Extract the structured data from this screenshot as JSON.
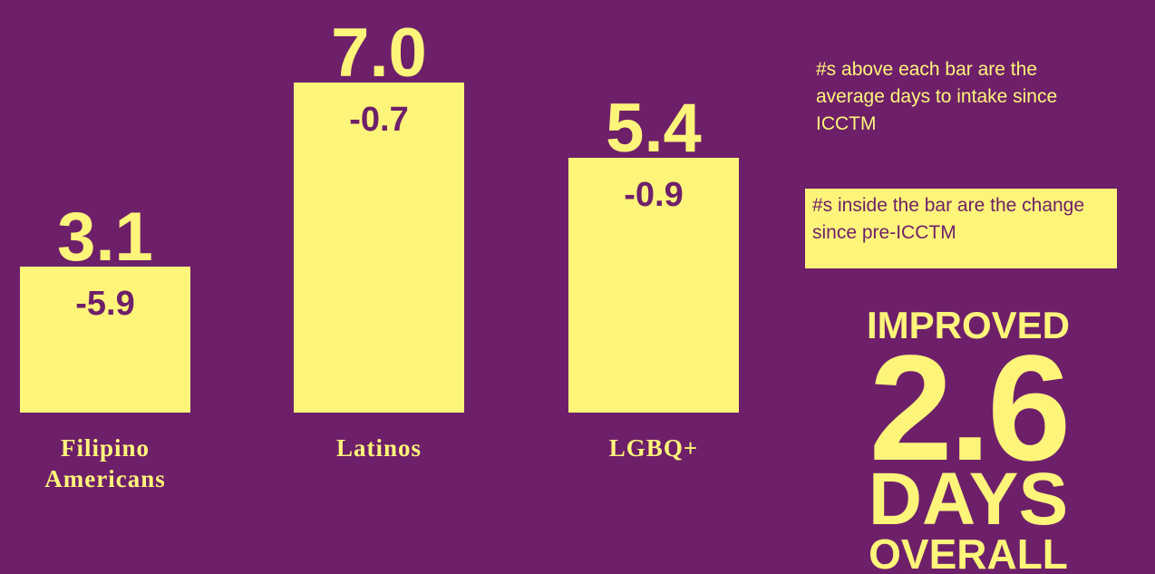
{
  "chart_data": {
    "type": "bar",
    "categories": [
      "Filipino Americans",
      "Latinos",
      "LGBQ+"
    ],
    "values": [
      3.1,
      7.0,
      5.4
    ],
    "value_labels": [
      "3.1",
      "7.0",
      "5.4"
    ],
    "changes": [
      -5.9,
      -0.7,
      -0.9
    ],
    "color": "#fdf57a",
    "annotations": [
      "#s above each bar are the average days to intake since ICCTM",
      "#s inside the bar are the change since pre-ICCTM"
    ],
    "callout": {
      "top": "IMPROVED",
      "value": 2.6,
      "unit": "DAYS",
      "bottom": "OVERALL"
    }
  }
}
